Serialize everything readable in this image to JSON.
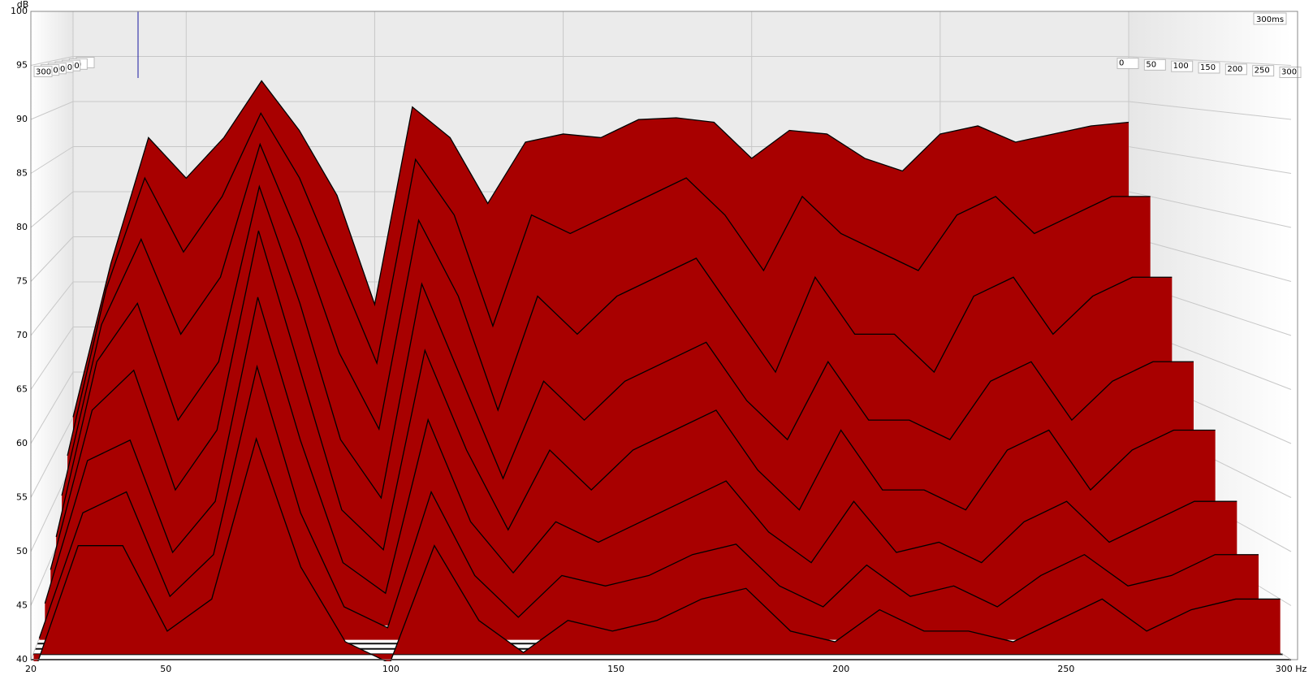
{
  "chart_data": {
    "type": "waterfall",
    "y_label": "dB",
    "color": "#a80000",
    "xlim": [
      20,
      300
    ],
    "ylim": [
      40,
      100
    ],
    "zlim": [
      0,
      300
    ],
    "xticks": [
      20,
      50,
      100,
      150,
      200,
      250,
      {
        "value": 300,
        "label": "300 Hz"
      }
    ],
    "yticks": [
      40,
      45,
      50,
      55,
      60,
      65,
      70,
      75,
      80,
      85,
      90,
      95,
      100
    ],
    "zticks": [
      0,
      50,
      100,
      150,
      200,
      250,
      300
    ],
    "z_end_label": "300ms",
    "frequencies": [
      20,
      30,
      40,
      50,
      60,
      70,
      80,
      90,
      100,
      110,
      120,
      130,
      140,
      150,
      160,
      170,
      180,
      190,
      200,
      210,
      220,
      230,
      240,
      250,
      260,
      270,
      280,
      290,
      300
    ],
    "series": [
      {
        "t": 0,
        "values": [
          55,
          72,
          86,
          81.5,
          86,
          92.3,
          86.8,
          79.6,
          67.5,
          89.4,
          86,
          78.7,
          85.5,
          86.4,
          86,
          88,
          88.2,
          87.7,
          83.7,
          86.8,
          86.4,
          83.7,
          82.3,
          86.4,
          87.3,
          85.5,
          86.4,
          87.3,
          87.7
        ]
      },
      {
        "t": 40,
        "values": [
          52,
          70,
          82,
          74,
          80,
          89,
          82,
          72,
          62,
          84,
          78,
          66,
          78,
          76,
          78,
          80,
          82,
          78,
          72,
          80,
          76,
          74,
          72,
          78,
          80,
          76,
          78,
          80,
          80
        ]
      },
      {
        "t": 80,
        "values": [
          49,
          67,
          76,
          66,
          72,
          86,
          76,
          64,
          56,
          78,
          70,
          58,
          70,
          66,
          70,
          72,
          74,
          68,
          62,
          72,
          66,
          66,
          62,
          70,
          72,
          66,
          70,
          72,
          72
        ]
      },
      {
        "t": 120,
        "values": [
          46,
          64,
          70,
          58,
          64,
          82,
          70,
          56,
          50,
          72,
          62,
          52,
          62,
          58,
          62,
          64,
          66,
          60,
          56,
          64,
          58,
          58,
          56,
          62,
          64,
          58,
          62,
          64,
          64
        ]
      },
      {
        "t": 160,
        "values": [
          44,
          60,
          64,
          52,
          58,
          78,
          64,
          50,
          46,
          66,
          56,
          48,
          56,
          52,
          56,
          58,
          60,
          54,
          50,
          58,
          52,
          52,
          50,
          56,
          58,
          52,
          56,
          58,
          58
        ]
      },
      {
        "t": 200,
        "values": [
          42,
          56,
          58,
          47,
          52,
          72,
          58,
          46,
          43,
          60,
          50,
          45,
          50,
          48,
          50,
          52,
          54,
          49,
          46,
          52,
          47,
          48,
          46,
          50,
          52,
          48,
          50,
          52,
          52
        ]
      },
      {
        "t": 240,
        "values": [
          40,
          52,
          54,
          44,
          48,
          66,
          52,
          43,
          41,
          54,
          46,
          42,
          46,
          45,
          46,
          48,
          49,
          45,
          43,
          47,
          44,
          45,
          43,
          46,
          48,
          45,
          46,
          48,
          48
        ]
      },
      {
        "t": 280,
        "values": [
          38,
          50,
          50,
          42,
          45,
          60,
          48,
          41,
          39,
          50,
          43,
          40,
          43,
          42,
          43,
          45,
          46,
          42,
          41,
          44,
          42,
          42,
          41,
          43,
          45,
          42,
          44,
          45,
          45
        ]
      }
    ]
  }
}
